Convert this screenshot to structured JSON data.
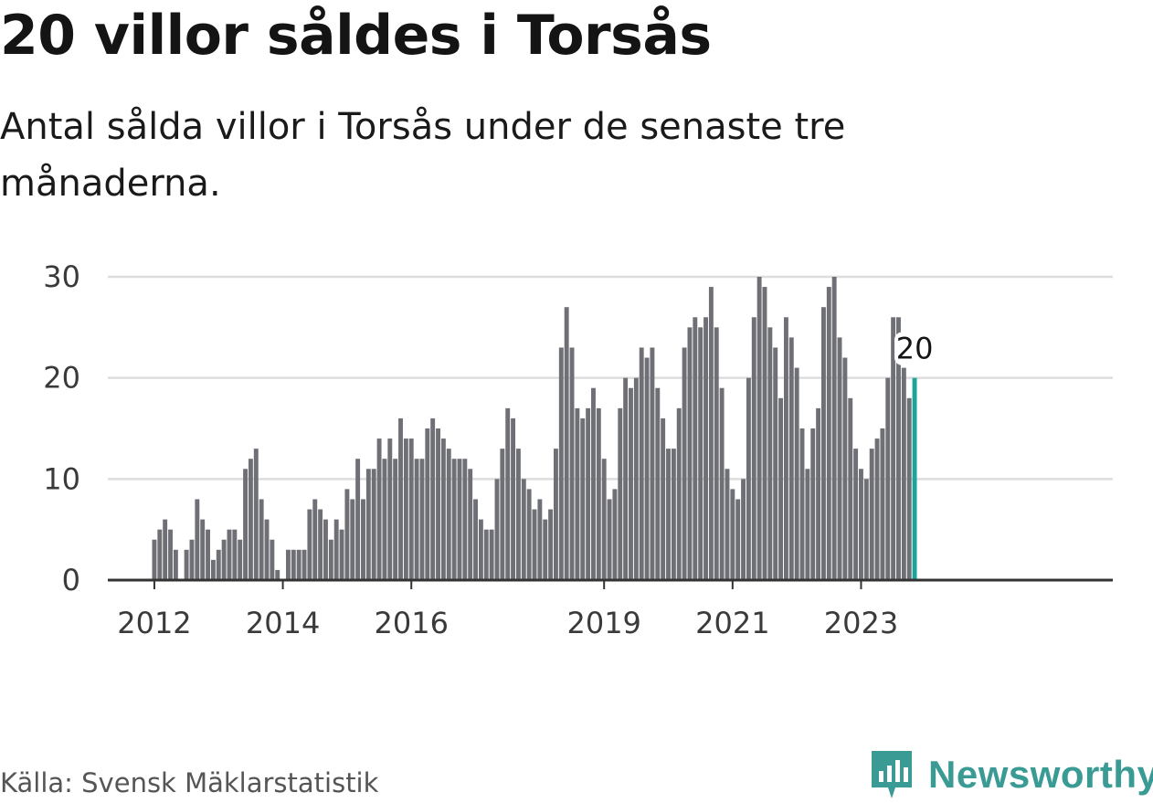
{
  "title": "20 villor såldes i Torsås",
  "subtitle": "Antal sålda villor i Torsås under de senaste tre månaderna.",
  "source": "Källa: Svensk Mäklarstatistik",
  "brand": "Newsworthy",
  "colors": {
    "bar": "#6f6f76",
    "highlight": "#1aa59b",
    "grid": "#dddddd",
    "axis": "#333333",
    "brand": "#3a9a94"
  },
  "chart_data": {
    "type": "bar",
    "title": "20 villor såldes i Torsås",
    "xlabel": "",
    "ylabel": "",
    "ylim": [
      0,
      30
    ],
    "yticks": [
      0,
      10,
      20,
      30
    ],
    "x_start": "2012-01",
    "xtick_labels": [
      {
        "label": "2012",
        "index": 0
      },
      {
        "label": "2014",
        "index": 24
      },
      {
        "label": "2016",
        "index": 48
      },
      {
        "label": "2019",
        "index": 84
      },
      {
        "label": "2021",
        "index": 108
      },
      {
        "label": "2023",
        "index": 132
      }
    ],
    "values": [
      4,
      5,
      6,
      5,
      3,
      0,
      3,
      4,
      8,
      6,
      5,
      2,
      3,
      4,
      5,
      5,
      4,
      11,
      12,
      13,
      8,
      6,
      4,
      1,
      0,
      3,
      3,
      3,
      3,
      7,
      8,
      7,
      6,
      4,
      6,
      5,
      9,
      8,
      12,
      8,
      11,
      11,
      14,
      12,
      14,
      12,
      16,
      14,
      14,
      12,
      12,
      15,
      16,
      15,
      14,
      13,
      12,
      12,
      12,
      11,
      8,
      6,
      5,
      5,
      10,
      13,
      17,
      16,
      13,
      10,
      9,
      7,
      8,
      6,
      7,
      13,
      23,
      27,
      23,
      17,
      16,
      17,
      19,
      17,
      12,
      8,
      9,
      17,
      20,
      19,
      20,
      23,
      22,
      23,
      19,
      16,
      13,
      13,
      17,
      23,
      25,
      26,
      25,
      26,
      29,
      25,
      19,
      11,
      9,
      8,
      10,
      20,
      26,
      30,
      29,
      25,
      23,
      18,
      26,
      24,
      21,
      15,
      11,
      15,
      17,
      27,
      29,
      30,
      24,
      22,
      18,
      13,
      11,
      10,
      13,
      14,
      15,
      20,
      26,
      26,
      21,
      18,
      20
    ],
    "highlight_index": 142,
    "highlight_label": "20"
  }
}
